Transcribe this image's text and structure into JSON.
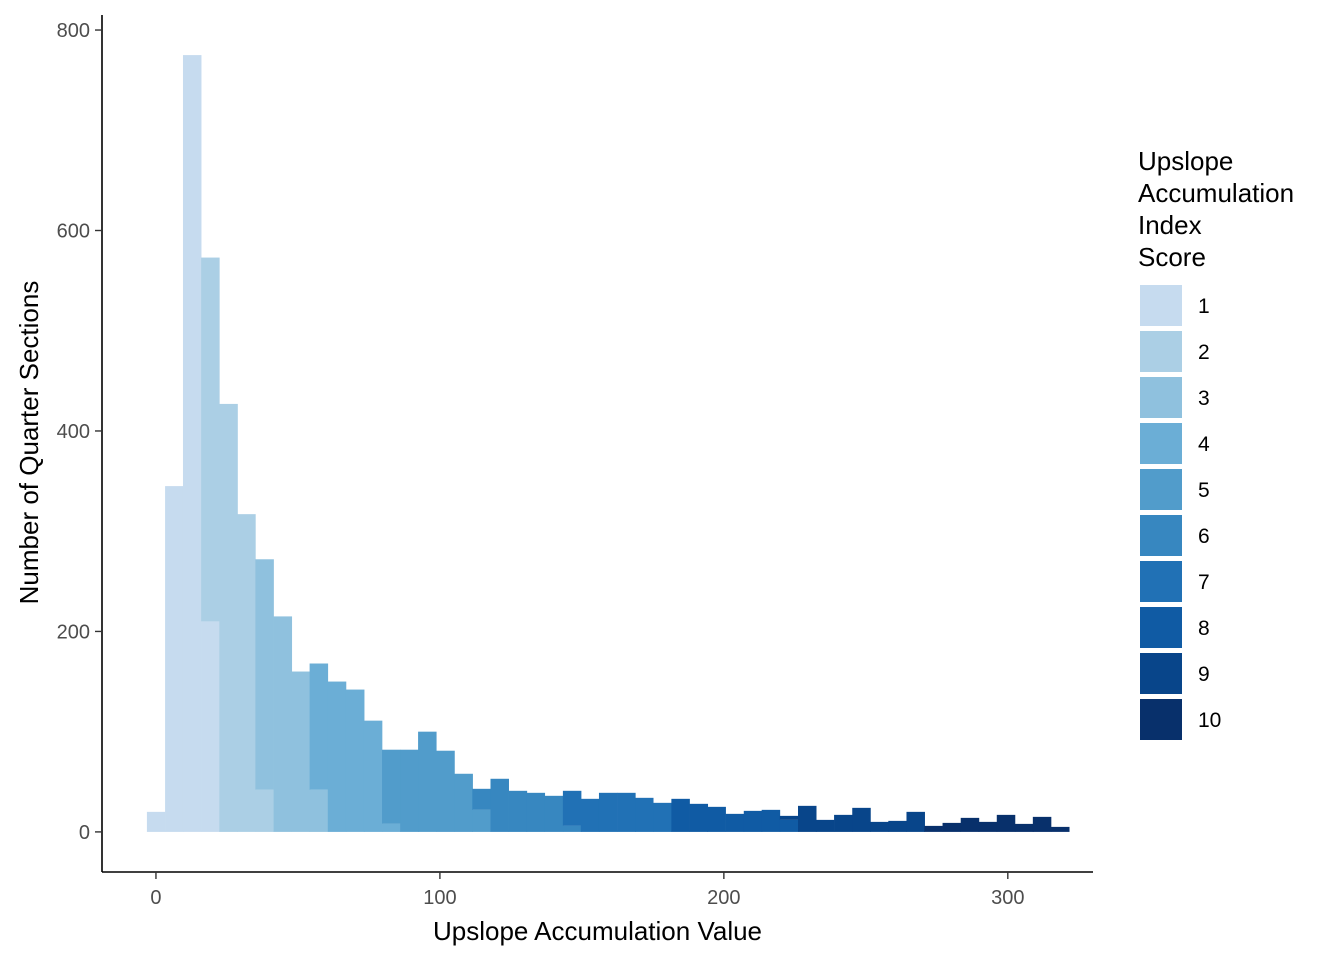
{
  "chart_data": {
    "type": "bar",
    "subtype": "stacked-histogram",
    "xlabel": "Upslope Accumulation Value",
    "ylabel": "Number of Quarter Sections",
    "xlim": [
      -19,
      330
    ],
    "ylim": [
      -40,
      815
    ],
    "x_ticks": [
      0,
      100,
      200,
      300
    ],
    "y_ticks": [
      0,
      200,
      400,
      600,
      800
    ],
    "grid": false,
    "bin_width": 6.37,
    "legend": {
      "title_lines": [
        "Upslope",
        "Accumulation",
        "Index",
        "Score"
      ],
      "placement": "right",
      "entries": [
        {
          "label": "1",
          "color": "#C6DBEF"
        },
        {
          "label": "2",
          "color": "#ABCFE5"
        },
        {
          "label": "3",
          "color": "#8FC1DE"
        },
        {
          "label": "4",
          "color": "#6BAED6"
        },
        {
          "label": "5",
          "color": "#519CCB"
        },
        {
          "label": "6",
          "color": "#3787C0"
        },
        {
          "label": "7",
          "color": "#2171B5"
        },
        {
          "label": "8",
          "color": "#105BA4"
        },
        {
          "label": "9",
          "color": "#08458A"
        },
        {
          "label": "10",
          "color": "#08306B"
        }
      ]
    },
    "bins": [
      {
        "x": 0.0,
        "segments": [
          {
            "score": "1",
            "value": 20
          }
        ]
      },
      {
        "x": 6.4,
        "segments": [
          {
            "score": "1",
            "value": 345
          }
        ]
      },
      {
        "x": 12.7,
        "segments": [
          {
            "score": "1",
            "value": 775
          }
        ]
      },
      {
        "x": 19.1,
        "segments": [
          {
            "score": "1",
            "value": 210
          },
          {
            "score": "2",
            "value": 363
          }
        ]
      },
      {
        "x": 25.5,
        "segments": [
          {
            "score": "2",
            "value": 427
          }
        ]
      },
      {
        "x": 31.8,
        "segments": [
          {
            "score": "2",
            "value": 317
          }
        ]
      },
      {
        "x": 38.2,
        "segments": [
          {
            "score": "2",
            "value": 42
          },
          {
            "score": "3",
            "value": 230
          }
        ]
      },
      {
        "x": 44.6,
        "segments": [
          {
            "score": "3",
            "value": 215
          }
        ]
      },
      {
        "x": 51.0,
        "segments": [
          {
            "score": "3",
            "value": 160
          }
        ]
      },
      {
        "x": 57.3,
        "segments": [
          {
            "score": "3",
            "value": 42
          },
          {
            "score": "4",
            "value": 126
          }
        ]
      },
      {
        "x": 63.7,
        "segments": [
          {
            "score": "4",
            "value": 150
          }
        ]
      },
      {
        "x": 70.1,
        "segments": [
          {
            "score": "4",
            "value": 142
          }
        ]
      },
      {
        "x": 76.4,
        "segments": [
          {
            "score": "4",
            "value": 111
          }
        ]
      },
      {
        "x": 82.8,
        "segments": [
          {
            "score": "4",
            "value": 8
          },
          {
            "score": "5",
            "value": 74
          }
        ]
      },
      {
        "x": 89.2,
        "segments": [
          {
            "score": "5",
            "value": 82
          }
        ]
      },
      {
        "x": 95.5,
        "segments": [
          {
            "score": "5",
            "value": 100
          }
        ]
      },
      {
        "x": 101.9,
        "segments": [
          {
            "score": "5",
            "value": 81
          }
        ]
      },
      {
        "x": 108.3,
        "segments": [
          {
            "score": "5",
            "value": 58
          }
        ]
      },
      {
        "x": 114.6,
        "segments": [
          {
            "score": "5",
            "value": 22
          },
          {
            "score": "6",
            "value": 21
          }
        ]
      },
      {
        "x": 121.0,
        "segments": [
          {
            "score": "6",
            "value": 53
          }
        ]
      },
      {
        "x": 127.4,
        "segments": [
          {
            "score": "6",
            "value": 41
          }
        ]
      },
      {
        "x": 133.7,
        "segments": [
          {
            "score": "6",
            "value": 39
          }
        ]
      },
      {
        "x": 140.1,
        "segments": [
          {
            "score": "6",
            "value": 36
          }
        ]
      },
      {
        "x": 146.5,
        "segments": [
          {
            "score": "6",
            "value": 6
          },
          {
            "score": "7",
            "value": 35
          }
        ]
      },
      {
        "x": 152.8,
        "segments": [
          {
            "score": "7",
            "value": 33
          }
        ]
      },
      {
        "x": 159.2,
        "segments": [
          {
            "score": "7",
            "value": 39
          }
        ]
      },
      {
        "x": 165.6,
        "segments": [
          {
            "score": "7",
            "value": 39
          }
        ]
      },
      {
        "x": 171.9,
        "segments": [
          {
            "score": "7",
            "value": 34
          }
        ]
      },
      {
        "x": 178.3,
        "segments": [
          {
            "score": "7",
            "value": 29
          }
        ]
      },
      {
        "x": 184.7,
        "segments": [
          {
            "score": "8",
            "value": 33
          }
        ]
      },
      {
        "x": 191.1,
        "segments": [
          {
            "score": "8",
            "value": 28
          }
        ]
      },
      {
        "x": 197.4,
        "segments": [
          {
            "score": "8",
            "value": 25
          }
        ]
      },
      {
        "x": 203.8,
        "segments": [
          {
            "score": "8",
            "value": 18
          }
        ]
      },
      {
        "x": 210.2,
        "segments": [
          {
            "score": "8",
            "value": 21
          }
        ]
      },
      {
        "x": 216.5,
        "segments": [
          {
            "score": "8",
            "value": 22
          }
        ]
      },
      {
        "x": 222.9,
        "segments": [
          {
            "score": "8",
            "value": 12
          },
          {
            "score": "9",
            "value": 4
          }
        ]
      },
      {
        "x": 229.3,
        "segments": [
          {
            "score": "9",
            "value": 26
          }
        ]
      },
      {
        "x": 235.6,
        "segments": [
          {
            "score": "9",
            "value": 12
          }
        ]
      },
      {
        "x": 242.0,
        "segments": [
          {
            "score": "9",
            "value": 17
          }
        ]
      },
      {
        "x": 248.4,
        "segments": [
          {
            "score": "9",
            "value": 24
          }
        ]
      },
      {
        "x": 254.7,
        "segments": [
          {
            "score": "9",
            "value": 10
          }
        ]
      },
      {
        "x": 261.1,
        "segments": [
          {
            "score": "9",
            "value": 11
          }
        ]
      },
      {
        "x": 267.5,
        "segments": [
          {
            "score": "9",
            "value": 20
          }
        ]
      },
      {
        "x": 273.8,
        "segments": [
          {
            "score": "10",
            "value": 6
          }
        ]
      },
      {
        "x": 280.2,
        "segments": [
          {
            "score": "10",
            "value": 9
          }
        ]
      },
      {
        "x": 286.6,
        "segments": [
          {
            "score": "10",
            "value": 14
          }
        ]
      },
      {
        "x": 292.9,
        "segments": [
          {
            "score": "10",
            "value": 10
          }
        ]
      },
      {
        "x": 299.3,
        "segments": [
          {
            "score": "10",
            "value": 17
          }
        ]
      },
      {
        "x": 305.7,
        "segments": [
          {
            "score": "10",
            "value": 8
          }
        ]
      },
      {
        "x": 312.0,
        "segments": [
          {
            "score": "10",
            "value": 15
          }
        ]
      },
      {
        "x": 318.4,
        "segments": [
          {
            "score": "10",
            "value": 5
          }
        ]
      }
    ]
  }
}
